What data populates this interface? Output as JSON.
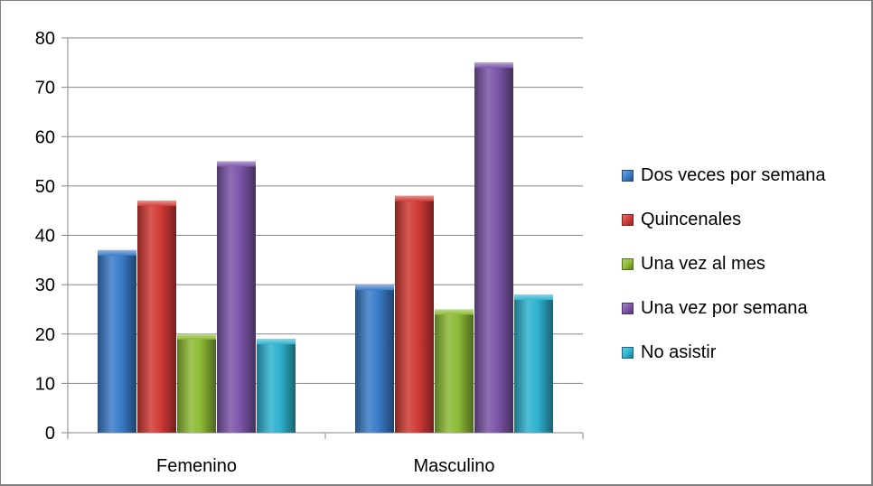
{
  "chart_data": {
    "type": "bar",
    "categories": [
      "Femenino",
      "Masculino"
    ],
    "series": [
      {
        "name": "Dos veces por semana",
        "values": [
          37,
          30
        ],
        "color": "#3a7cc8"
      },
      {
        "name": "Quincenales",
        "values": [
          47,
          48
        ],
        "color": "#d13a36"
      },
      {
        "name": "Una vez al mes",
        "values": [
          20,
          25
        ],
        "color": "#8dbb36"
      },
      {
        "name": "Una vez por semana",
        "values": [
          55,
          75
        ],
        "color": "#7b55a8"
      },
      {
        "name": "No asistir",
        "values": [
          19,
          28
        ],
        "color": "#2fb3cf"
      }
    ],
    "ylim": [
      0,
      80
    ],
    "yticks": [
      0,
      10,
      20,
      30,
      40,
      50,
      60,
      70,
      80
    ],
    "grid": true,
    "legend_position": "right"
  }
}
